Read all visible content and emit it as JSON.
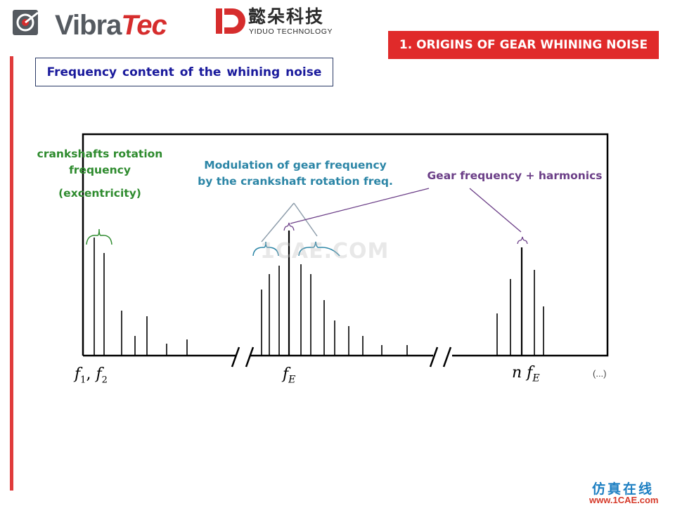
{
  "header": {
    "vibratec_logo": {
      "part1": "Vibra",
      "part2": "Tec"
    },
    "yiduo_logo": {
      "chinese": "懿朵科技",
      "english": "YIDUO TECHNOLOGY"
    },
    "section_title": "1. ORIGINS OF GEAR WHINING NOISE"
  },
  "slide_title": "Frequency content of the whining noise",
  "labels": {
    "crankshaft": {
      "line1": "crankshafts rotation",
      "line2": "frequency",
      "line3": "(excentricity)"
    },
    "modulation": {
      "line1": "Modulation of gear frequency",
      "line2": "by the crankshaft rotation freq."
    },
    "gear": "Gear frequency + harmonics"
  },
  "axis_labels": {
    "f1_f2": {
      "f": "f",
      "sub1": "1",
      "sep": ", ",
      "sub2": "2"
    },
    "fe": {
      "f": "f",
      "sub": "E"
    },
    "nfe": {
      "n": "n",
      "f": "f",
      "sub": "E"
    },
    "ellipsis": "(...)"
  },
  "watermark": "1CAE.COM",
  "footer": {
    "site_cn": "仿真在线",
    "site_url": "www.1CAE.com"
  },
  "colors": {
    "accent_red": "#e02a2a",
    "title_blue": "#1a1a9c",
    "green": "#2e8b2e",
    "teal": "#2b85a6",
    "purple": "#6b3e87"
  }
}
